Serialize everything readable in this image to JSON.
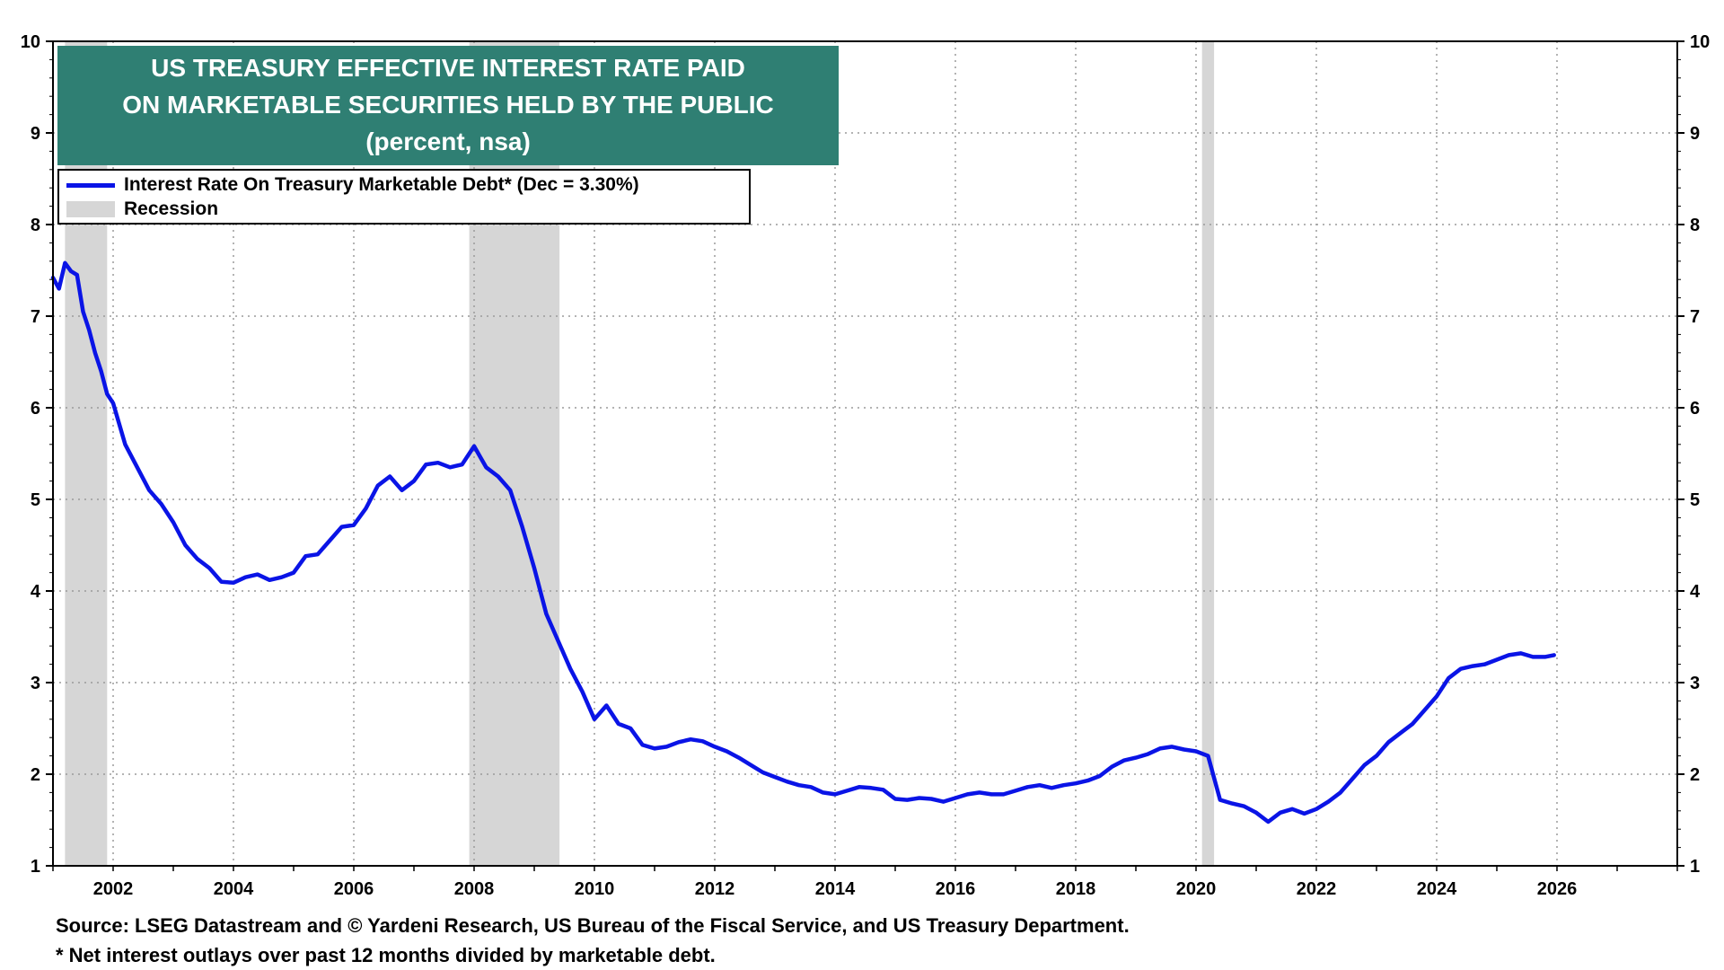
{
  "title": {
    "line1": "US TREASURY EFFECTIVE INTEREST RATE PAID",
    "line2": "ON MARKETABLE SECURITIES HELD BY THE PUBLIC",
    "line3": "(percent, nsa)"
  },
  "legend": {
    "series_label": "Interest Rate On Treasury Marketable Debt* (Dec = 3.30%)",
    "recession_label": "Recession"
  },
  "footer": {
    "source": "Source: LSEG Datastream and © Yardeni Research, US Bureau of the Fiscal Service, and US Treasury Department.",
    "note": "* Net interest outlays over past 12 months divided by marketable debt."
  },
  "colors": {
    "series": "#0a14e6",
    "recession": "#d6d6d6",
    "title_bg": "#2f7f73",
    "grid": "#9a9a9a"
  },
  "chart_data": {
    "type": "line",
    "title": "US TREASURY EFFECTIVE INTEREST RATE PAID ON MARKETABLE SECURITIES HELD BY THE PUBLIC (percent, nsa)",
    "xlabel": "",
    "ylabel": "",
    "xlim": [
      2001.0,
      2028.0
    ],
    "ylim": [
      1,
      10
    ],
    "x_ticks": [
      2002,
      2004,
      2006,
      2008,
      2010,
      2012,
      2014,
      2016,
      2018,
      2020,
      2022,
      2024,
      2026
    ],
    "y_ticks": [
      1,
      2,
      3,
      4,
      5,
      6,
      7,
      8,
      9,
      10
    ],
    "grid": true,
    "legend_position": "top-left",
    "recessions": [
      [
        2001.2,
        2001.9
      ],
      [
        2007.92,
        2009.42
      ],
      [
        2020.1,
        2020.3
      ]
    ],
    "series": [
      {
        "name": "Interest Rate On Treasury Marketable Debt* (Dec = 3.30%)",
        "x": [
          2001.0,
          2001.1,
          2001.2,
          2001.3,
          2001.4,
          2001.5,
          2001.6,
          2001.7,
          2001.8,
          2001.9,
          2002.0,
          2002.2,
          2002.4,
          2002.6,
          2002.8,
          2003.0,
          2003.2,
          2003.4,
          2003.6,
          2003.8,
          2004.0,
          2004.2,
          2004.4,
          2004.6,
          2004.8,
          2005.0,
          2005.2,
          2005.4,
          2005.6,
          2005.8,
          2006.0,
          2006.2,
          2006.4,
          2006.6,
          2006.8,
          2007.0,
          2007.2,
          2007.4,
          2007.6,
          2007.8,
          2008.0,
          2008.2,
          2008.4,
          2008.6,
          2008.8,
          2009.0,
          2009.2,
          2009.4,
          2009.6,
          2009.8,
          2010.0,
          2010.2,
          2010.4,
          2010.6,
          2010.8,
          2011.0,
          2011.2,
          2011.4,
          2011.6,
          2011.8,
          2012.0,
          2012.2,
          2012.4,
          2012.6,
          2012.8,
          2013.0,
          2013.2,
          2013.4,
          2013.6,
          2013.8,
          2014.0,
          2014.2,
          2014.4,
          2014.6,
          2014.8,
          2015.0,
          2015.2,
          2015.4,
          2015.6,
          2015.8,
          2016.0,
          2016.2,
          2016.4,
          2016.6,
          2016.8,
          2017.0,
          2017.2,
          2017.4,
          2017.6,
          2017.8,
          2018.0,
          2018.2,
          2018.4,
          2018.6,
          2018.8,
          2019.0,
          2019.2,
          2019.4,
          2019.6,
          2019.8,
          2020.0,
          2020.2,
          2020.4,
          2020.6,
          2020.8,
          2021.0,
          2021.2,
          2021.4,
          2021.6,
          2021.8,
          2022.0,
          2022.2,
          2022.4,
          2022.6,
          2022.8,
          2023.0,
          2023.2,
          2023.4,
          2023.6,
          2023.8,
          2024.0,
          2024.2,
          2024.4,
          2024.6,
          2024.8,
          2025.0,
          2025.2,
          2025.4,
          2025.6,
          2025.8,
          2025.95
        ],
        "y": [
          7.42,
          7.3,
          7.58,
          7.49,
          7.45,
          7.05,
          6.85,
          6.6,
          6.4,
          6.15,
          6.05,
          5.6,
          5.35,
          5.1,
          4.95,
          4.75,
          4.5,
          4.35,
          4.25,
          4.1,
          4.09,
          4.15,
          4.18,
          4.12,
          4.15,
          4.2,
          4.38,
          4.4,
          4.55,
          4.7,
          4.72,
          4.9,
          5.15,
          5.25,
          5.1,
          5.2,
          5.38,
          5.4,
          5.35,
          5.38,
          5.58,
          5.35,
          5.25,
          5.1,
          4.7,
          4.25,
          3.75,
          3.45,
          3.15,
          2.9,
          2.6,
          2.75,
          2.55,
          2.5,
          2.32,
          2.28,
          2.3,
          2.35,
          2.38,
          2.36,
          2.3,
          2.25,
          2.18,
          2.1,
          2.02,
          1.97,
          1.92,
          1.88,
          1.86,
          1.8,
          1.78,
          1.82,
          1.86,
          1.85,
          1.83,
          1.73,
          1.72,
          1.74,
          1.73,
          1.7,
          1.74,
          1.78,
          1.8,
          1.78,
          1.78,
          1.82,
          1.86,
          1.88,
          1.85,
          1.88,
          1.9,
          1.93,
          1.98,
          2.08,
          2.15,
          2.18,
          2.22,
          2.28,
          2.3,
          2.27,
          2.25,
          2.2,
          1.72,
          1.68,
          1.65,
          1.58,
          1.48,
          1.58,
          1.62,
          1.57,
          1.62,
          1.7,
          1.8,
          1.95,
          2.1,
          2.2,
          2.35,
          2.45,
          2.55,
          2.7,
          2.85,
          3.05,
          3.15,
          3.18,
          3.2,
          3.25,
          3.3,
          3.32,
          3.28,
          3.28,
          3.3
        ]
      }
    ]
  }
}
